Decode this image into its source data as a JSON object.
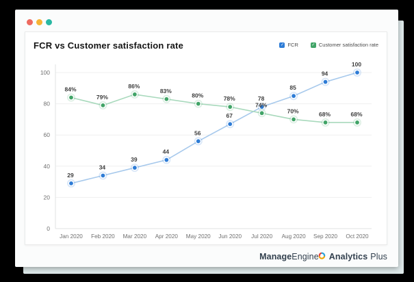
{
  "window": {
    "traffic_lights": [
      {
        "name": "close",
        "color": "#ee6a5f"
      },
      {
        "name": "minimize",
        "color": "#f6b434"
      },
      {
        "name": "zoom",
        "color": "#29b8a3"
      }
    ]
  },
  "chart": {
    "title": "FCR vs Customer satisfaction rate"
  },
  "chart_data": {
    "type": "line",
    "title": "FCR vs Customer satisfaction rate",
    "categories": [
      "Jan 2020",
      "Feb 2020",
      "Mar 2020",
      "Apr 2020",
      "May 2020",
      "Jun 2020",
      "Jul 2020",
      "Aug 2020",
      "Sep 2020",
      "Oct 2020"
    ],
    "series": [
      {
        "name": "FCR",
        "values": [
          29,
          34,
          39,
          44,
          56,
          67,
          78,
          85,
          94,
          100
        ],
        "label_suffix": "",
        "color": "#2e7cd6",
        "line_color": "#a7c9ec"
      },
      {
        "name": "Customer satisfaction rate",
        "values": [
          84,
          79,
          86,
          83,
          80,
          78,
          74,
          70,
          68,
          68
        ],
        "label_suffix": "%",
        "color": "#41a467",
        "line_color": "#a8d9bc"
      }
    ],
    "ylim": [
      0,
      100
    ],
    "yticks": [
      0,
      20,
      40,
      60,
      80,
      100
    ],
    "grid": true,
    "legend_position": "top-right"
  },
  "branding": {
    "manage": "Manage",
    "engine": "Engine",
    "analytics": "Analytics",
    "plus": "Plus"
  }
}
